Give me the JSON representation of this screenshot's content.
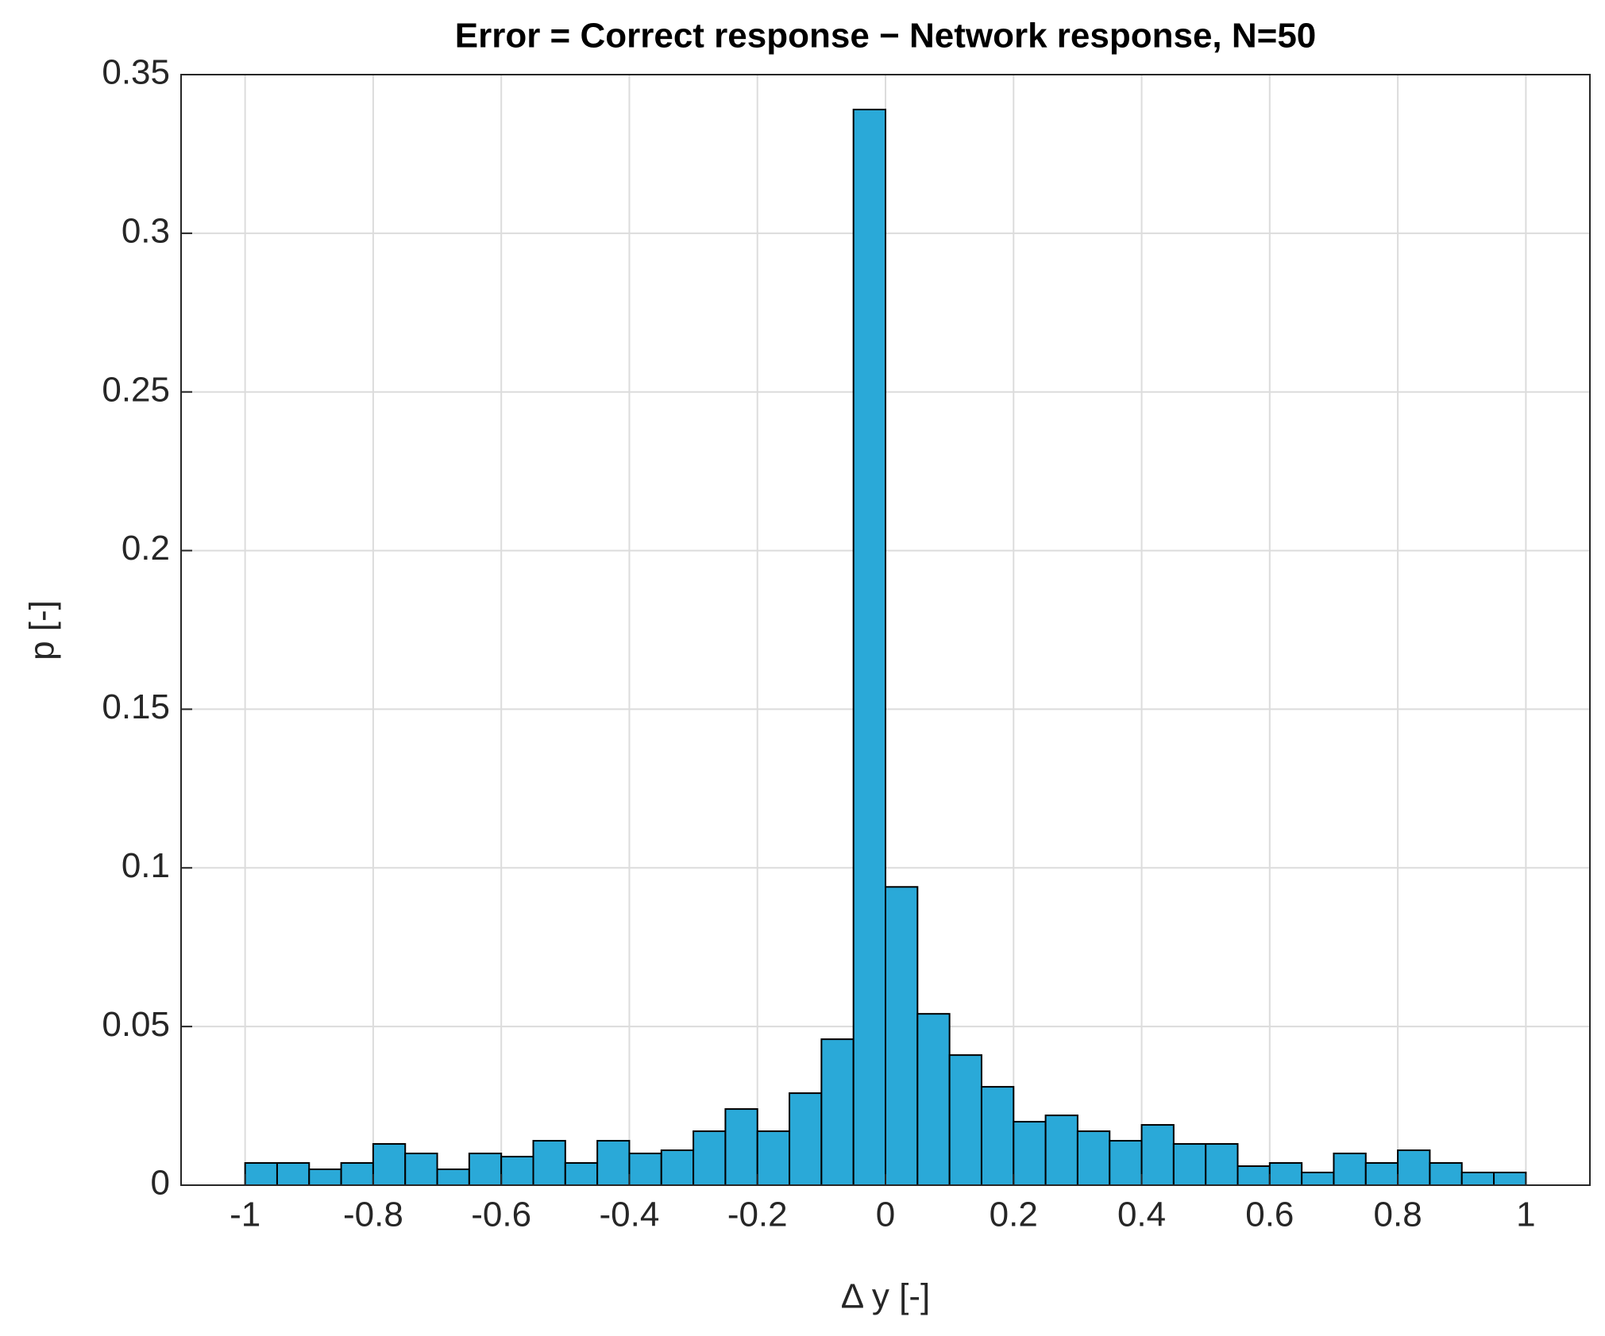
{
  "chart_data": {
    "type": "histogram",
    "title": "Error = Correct response − Network response, N=50",
    "xlabel": "Δ y [-]",
    "ylabel": "p [-]",
    "bins": [
      -1,
      -0.95,
      -0.9,
      -0.85,
      -0.8,
      -0.75,
      -0.7,
      -0.65,
      -0.6,
      -0.55,
      -0.5,
      -0.45,
      -0.4,
      -0.35,
      -0.3,
      -0.25,
      -0.2,
      -0.15,
      -0.1,
      -0.05,
      0,
      0.05,
      0.1,
      0.15,
      0.2,
      0.25,
      0.3,
      0.35,
      0.4,
      0.45,
      0.5,
      0.55,
      0.6,
      0.65,
      0.7,
      0.75,
      0.8,
      0.85,
      0.9,
      0.95,
      1
    ],
    "values": [
      0.007,
      0.007,
      0.005,
      0.007,
      0.013,
      0.01,
      0.005,
      0.01,
      0.009,
      0.014,
      0.007,
      0.014,
      0.01,
      0.011,
      0.017,
      0.024,
      0.017,
      0.029,
      0.046,
      0.339,
      0.094,
      0.054,
      0.041,
      0.031,
      0.02,
      0.022,
      0.017,
      0.014,
      0.019,
      0.013,
      0.013,
      0.006,
      0.007,
      0.004,
      0.01,
      0.007,
      0.011,
      0.007,
      0.004,
      0.004
    ],
    "color": "#2aa9d8",
    "xlim": [
      -1.1,
      1.1
    ],
    "xticks": [
      -1,
      -0.8,
      -0.6,
      -0.4,
      -0.2,
      0,
      0.2,
      0.4,
      0.6,
      0.8,
      1
    ],
    "ylim": [
      0,
      0.35
    ],
    "yticks": [
      0,
      0.05,
      0.1,
      0.15,
      0.2,
      0.25,
      0.3,
      0.35
    ],
    "grid": true
  }
}
